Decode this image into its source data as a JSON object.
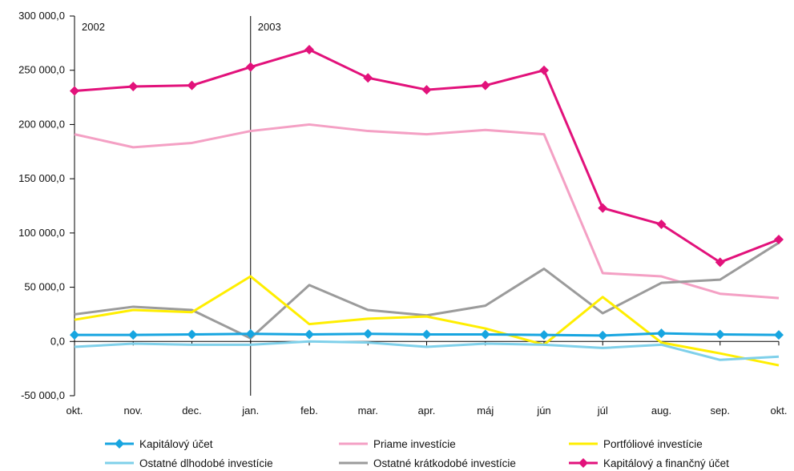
{
  "chart_data": {
    "type": "line",
    "categories": [
      "okt.",
      "nov.",
      "dec.",
      "jan.",
      "feb.",
      "mar.",
      "apr.",
      "máj",
      "jún",
      "júl",
      "aug.",
      "sep.",
      "okt."
    ],
    "ylim": [
      -50000,
      300000
    ],
    "yticks": [
      -50000,
      0,
      50000,
      100000,
      150000,
      200000,
      250000,
      300000
    ],
    "ytick_labels": [
      "-50 000,0",
      "0,0",
      "50 000,0",
      "100 000,0",
      "150 000,0",
      "200 000,0",
      "250 000,0",
      "300 000,0"
    ],
    "grid": false,
    "legend_position": "bottom",
    "year_labels": [
      {
        "label": "2002",
        "category_index": 0
      },
      {
        "label": "2003",
        "category_index": 3
      }
    ],
    "year_divider_category_index": 3,
    "series": [
      {
        "name": "Priame investície",
        "color": "#f4a0c4",
        "marker": "none",
        "values": [
          191000,
          179000,
          183000,
          194000,
          200000,
          194000,
          191000,
          195000,
          191000,
          63000,
          60000,
          44000,
          40000
        ]
      },
      {
        "name": "Ostatné krátkodobé investície",
        "color": "#9b9b9b",
        "marker": "none",
        "values": [
          25000,
          32000,
          29000,
          3000,
          52000,
          29000,
          24000,
          33000,
          67000,
          26000,
          54000,
          57000,
          91000
        ]
      },
      {
        "name": "Portfóliové investície",
        "color": "#ffee00",
        "marker": "none",
        "values": [
          20000,
          29000,
          27000,
          60000,
          16000,
          21000,
          23000,
          12000,
          -3000,
          41000,
          -1000,
          -11000,
          -22000
        ]
      },
      {
        "name": "Ostatné dlhodobé investície",
        "color": "#7fd0ea",
        "marker": "none",
        "values": [
          -5000,
          -2000,
          -3000,
          -3000,
          0,
          -1000,
          -5000,
          -2000,
          -3000,
          -6000,
          -3000,
          -17000,
          -14000
        ]
      },
      {
        "name": "Kapitálový účet",
        "color": "#17a5e0",
        "marker": "diamond",
        "values": [
          6000,
          6000,
          6500,
          7000,
          6500,
          7000,
          6500,
          6500,
          6000,
          5500,
          7500,
          6500,
          6000
        ]
      },
      {
        "name": "Kapitálový a finančný účet",
        "color": "#e2127b",
        "marker": "diamond",
        "values": [
          231000,
          235000,
          236000,
          253000,
          269000,
          243000,
          232000,
          236000,
          250000,
          123000,
          108000,
          73000,
          94000
        ]
      }
    ]
  },
  "legend": [
    {
      "name": "Kapitálový účet",
      "color": "#17a5e0",
      "marker": "diamond"
    },
    {
      "name": "Priame investície",
      "color": "#f4a0c4",
      "marker": "none"
    },
    {
      "name": "Portfóliové investície",
      "color": "#ffee00",
      "marker": "none"
    },
    {
      "name": "Ostatné dlhodobé investície",
      "color": "#7fd0ea",
      "marker": "none"
    },
    {
      "name": "Ostatné krátkodobé investície",
      "color": "#9b9b9b",
      "marker": "none"
    },
    {
      "name": "Kapitálový a finančný účet",
      "color": "#e2127b",
      "marker": "diamond"
    }
  ]
}
